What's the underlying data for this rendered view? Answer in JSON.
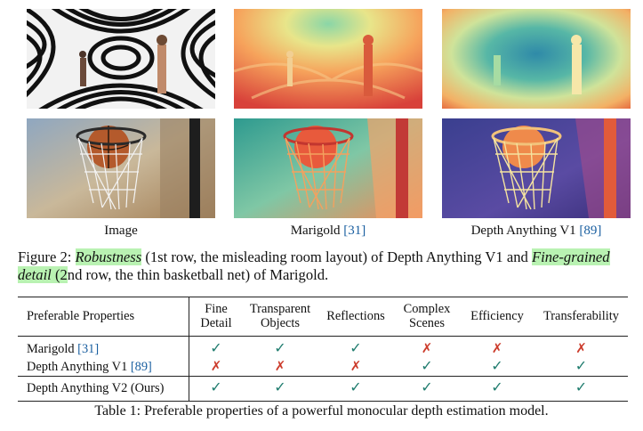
{
  "figure": {
    "columns": [
      "Image",
      "Marigold",
      "Depth Anything V1"
    ],
    "column_refs": [
      "",
      "[31]",
      "[89]"
    ],
    "caption": {
      "prefix": "Figure 2: ",
      "hl1": "Robustness",
      "part1": " (1st row, the misleading room layout) of Depth Anything V1 and ",
      "hl2": "Fine-grained detail",
      "hl2b": " (2",
      "part2": "nd row, the thin basketball net) of Marigold."
    }
  },
  "table": {
    "headers": [
      "Preferable Properties",
      "Fine Detail",
      "Transparent Objects",
      "Reflections",
      "Complex Scenes",
      "Efficiency",
      "Transferability"
    ],
    "rows": [
      {
        "name": "Marigold ",
        "ref": "[31]",
        "values": [
          "ok",
          "ok",
          "ok",
          "no",
          "no",
          "no"
        ]
      },
      {
        "name": "Depth Anything V1 ",
        "ref": "[89]",
        "values": [
          "no",
          "no",
          "no",
          "ok",
          "ok",
          "ok"
        ]
      },
      {
        "name": "Depth Anything V2 (Ours)",
        "ref": "",
        "values": [
          "ok",
          "ok",
          "ok",
          "ok",
          "ok",
          "ok"
        ]
      }
    ],
    "symbols": {
      "ok": "✓",
      "no": "✗"
    },
    "colors": {
      "ok": "#1f7c6e",
      "no": "#cc3b2b"
    },
    "caption": "Table 1: Preferable properties of a powerful monocular depth estimation model."
  }
}
